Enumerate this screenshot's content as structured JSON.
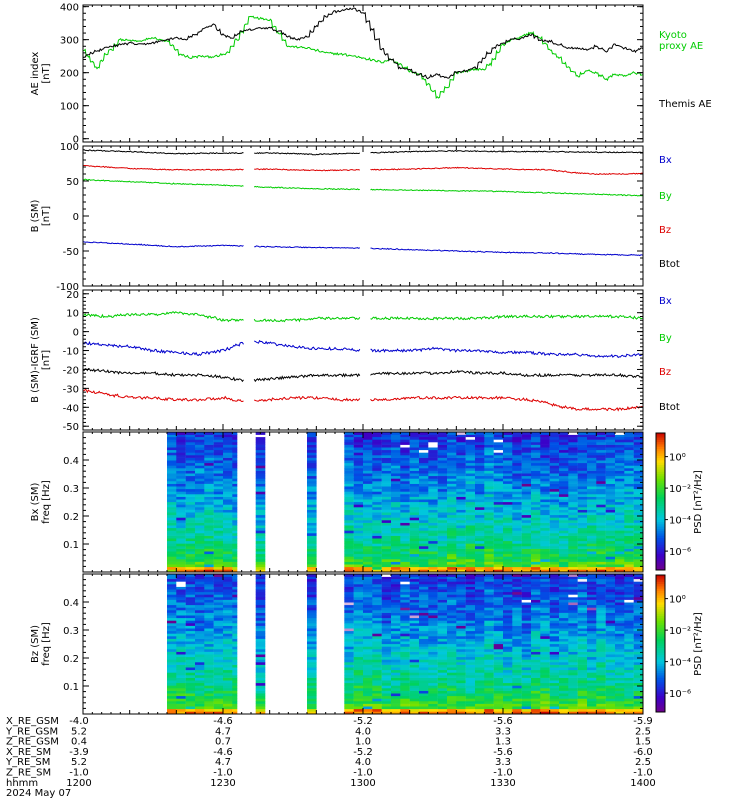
{
  "panels": [
    {
      "id": "ae",
      "ylabel": [
        "AE index",
        "[nT]"
      ],
      "ylim": [
        -10,
        405
      ],
      "yticks": [
        0,
        100,
        200,
        300,
        400
      ],
      "series": [
        {
          "name": "Kyoto proxy AE",
          "color": "#00cc00",
          "x": [
            1200,
            1201,
            1203,
            1205,
            1208,
            1212,
            1215,
            1218,
            1221,
            1223,
            1225,
            1227,
            1229,
            1231,
            1233,
            1236,
            1240,
            1244,
            1248,
            1252,
            1256,
            1300,
            1302,
            1304,
            1306,
            1308,
            1310,
            1312,
            1314,
            1316,
            1318,
            1320,
            1322,
            1324,
            1326,
            1328,
            1330,
            1332,
            1334,
            1336,
            1338,
            1340,
            1342,
            1344,
            1346,
            1348,
            1350,
            1352,
            1354,
            1356,
            1358,
            1400
          ],
          "y": [
            270,
            250,
            215,
            255,
            300,
            295,
            305,
            295,
            255,
            245,
            250,
            248,
            250,
            260,
            300,
            370,
            360,
            280,
            275,
            260,
            255,
            245,
            238,
            232,
            240,
            225,
            205,
            195,
            165,
            125,
            155,
            200,
            205,
            210,
            210,
            240,
            285,
            300,
            310,
            320,
            305,
            270,
            245,
            215,
            190,
            205,
            200,
            180,
            195,
            190,
            200,
            195
          ]
        },
        {
          "name": "Themis AE",
          "color": "#000000",
          "x": [
            1200,
            1202,
            1205,
            1208,
            1210,
            1212,
            1215,
            1218,
            1220,
            1222,
            1224,
            1226,
            1228,
            1230,
            1232,
            1234,
            1236,
            1238,
            1240,
            1242,
            1244,
            1246,
            1248,
            1250,
            1252,
            1254,
            1256,
            1258,
            1300,
            1302,
            1304,
            1306,
            1308,
            1310,
            1312,
            1314,
            1316,
            1318,
            1320,
            1322,
            1324,
            1326,
            1328,
            1330,
            1332,
            1334,
            1336,
            1338,
            1340,
            1342,
            1344,
            1346,
            1348,
            1350,
            1352,
            1354,
            1356,
            1358,
            1400
          ],
          "y": [
            245,
            260,
            275,
            285,
            290,
            285,
            290,
            300,
            305,
            300,
            315,
            335,
            345,
            315,
            305,
            325,
            330,
            335,
            335,
            325,
            310,
            300,
            310,
            340,
            370,
            385,
            390,
            395,
            380,
            330,
            270,
            240,
            215,
            210,
            195,
            185,
            195,
            185,
            200,
            205,
            215,
            245,
            275,
            290,
            300,
            305,
            315,
            300,
            295,
            285,
            275,
            275,
            270,
            280,
            265,
            285,
            275,
            265,
            275
          ]
        }
      ],
      "legend": [
        {
          "text": "Kyoto",
          "color": "#00cc00"
        },
        {
          "text": "proxy AE",
          "color": "#00cc00"
        },
        {
          "text": "Themis AE",
          "color": "#000000"
        }
      ]
    },
    {
      "id": "bsm",
      "ylabel": [
        "B (SM)",
        "[nT]"
      ],
      "ylim": [
        -100,
        100
      ],
      "yticks": [
        -100,
        -50,
        0,
        50,
        100
      ],
      "gaps": [
        [
          1235,
          1236
        ],
        [
          1300,
          1301
        ]
      ],
      "series": [
        {
          "name": "Bx",
          "color": "#0000cc",
          "x": [
            1200,
            1210,
            1220,
            1230,
            1240,
            1250,
            1300,
            1310,
            1320,
            1330,
            1340,
            1350,
            1400
          ],
          "y": [
            -37,
            -40,
            -44,
            -42,
            -44,
            -45,
            -46,
            -48,
            -50,
            -52,
            -53,
            -55,
            -56
          ]
        },
        {
          "name": "By",
          "color": "#00cc00",
          "x": [
            1200,
            1210,
            1220,
            1230,
            1240,
            1250,
            1300,
            1310,
            1320,
            1330,
            1340,
            1350,
            1400
          ],
          "y": [
            52,
            49,
            46,
            44,
            41,
            39,
            38,
            37,
            36,
            35,
            33,
            31,
            29
          ]
        },
        {
          "name": "Bz",
          "color": "#dd0000",
          "x": [
            1200,
            1210,
            1220,
            1230,
            1240,
            1250,
            1300,
            1310,
            1320,
            1330,
            1340,
            1345,
            1350,
            1355,
            1400
          ],
          "y": [
            72,
            68,
            66,
            66,
            67,
            65,
            66,
            67,
            69,
            67,
            66,
            62,
            60,
            60,
            61
          ]
        },
        {
          "name": "Btot",
          "color": "#000000",
          "x": [
            1200,
            1210,
            1220,
            1230,
            1240,
            1250,
            1300,
            1310,
            1320,
            1330,
            1340,
            1350,
            1400
          ],
          "y": [
            94,
            92,
            89,
            90,
            90,
            88,
            90,
            92,
            93,
            92,
            92,
            91,
            91
          ]
        }
      ],
      "legend": [
        {
          "text": "Bx",
          "color": "#0000cc"
        },
        {
          "text": "By",
          "color": "#00cc00"
        },
        {
          "text": "Bz",
          "color": "#dd0000"
        },
        {
          "text": "Btot",
          "color": "#000000"
        }
      ]
    },
    {
      "id": "bigrf",
      "ylabel": [
        "B (SM)-IGRF (SM)",
        "[nT]"
      ],
      "ylim": [
        -52,
        22
      ],
      "yticks": [
        -50,
        -40,
        -30,
        -20,
        -10,
        0,
        10,
        20
      ],
      "gaps": [
        [
          1235,
          1236
        ],
        [
          1300,
          1301
        ]
      ],
      "series": [
        {
          "name": "Bx",
          "color": "#0000cc",
          "x": [
            1200,
            1205,
            1210,
            1215,
            1220,
            1225,
            1230,
            1233,
            1236,
            1240,
            1245,
            1250,
            1255,
            1300,
            1305,
            1310,
            1315,
            1320,
            1325,
            1330,
            1335,
            1340,
            1345,
            1350,
            1355,
            1400
          ],
          "y": [
            -6,
            -7,
            -8,
            -10,
            -11,
            -12,
            -10,
            -7,
            -5,
            -6,
            -8,
            -9,
            -9,
            -10,
            -10,
            -10,
            -9,
            -10,
            -10,
            -11,
            -11,
            -12,
            -12,
            -13,
            -13,
            -12
          ]
        },
        {
          "name": "By",
          "color": "#00cc00",
          "x": [
            1200,
            1205,
            1210,
            1215,
            1220,
            1225,
            1230,
            1235,
            1240,
            1245,
            1250,
            1255,
            1300,
            1305,
            1310,
            1315,
            1320,
            1325,
            1330,
            1335,
            1340,
            1345,
            1350,
            1355,
            1400
          ],
          "y": [
            9,
            8,
            9,
            9,
            10,
            9,
            6,
            6,
            6,
            6,
            7,
            7,
            7,
            7,
            7,
            7,
            7,
            7,
            8,
            8,
            8,
            8,
            8,
            8,
            7
          ]
        },
        {
          "name": "Bz",
          "color": "#dd0000",
          "x": [
            1200,
            1205,
            1210,
            1215,
            1220,
            1225,
            1230,
            1235,
            1240,
            1245,
            1250,
            1255,
            1300,
            1305,
            1310,
            1315,
            1320,
            1325,
            1330,
            1335,
            1340,
            1343,
            1346,
            1350,
            1355,
            1400
          ],
          "y": [
            -31,
            -33,
            -35,
            -35,
            -36,
            -36,
            -35,
            -37,
            -36,
            -35,
            -35,
            -36,
            -36,
            -36,
            -35,
            -35,
            -35,
            -35,
            -35,
            -36,
            -38,
            -40,
            -41,
            -41,
            -41,
            -40
          ]
        },
        {
          "name": "Btot",
          "color": "#000000",
          "x": [
            1200,
            1205,
            1210,
            1215,
            1220,
            1225,
            1230,
            1235,
            1240,
            1245,
            1250,
            1255,
            1300,
            1305,
            1310,
            1315,
            1320,
            1325,
            1330,
            1335,
            1340,
            1345,
            1350,
            1355,
            1400
          ],
          "y": [
            -20,
            -21,
            -22,
            -22,
            -23,
            -23,
            -24,
            -26,
            -25,
            -24,
            -23,
            -23,
            -23,
            -22,
            -22,
            -22,
            -21,
            -22,
            -22,
            -23,
            -23,
            -23,
            -23,
            -23,
            -24
          ]
        }
      ],
      "legend": [
        {
          "text": "Bx",
          "color": "#0000cc"
        },
        {
          "text": "By",
          "color": "#00cc00"
        },
        {
          "text": "Bz",
          "color": "#dd0000"
        },
        {
          "text": "Btot",
          "color": "#000000"
        }
      ]
    },
    {
      "id": "bxspec",
      "ylabel": [
        "Bx (SM)",
        "freq  [Hz]"
      ],
      "ylim": [
        0,
        0.5
      ],
      "yticks": [
        0.1,
        0.2,
        0.3,
        0.4
      ],
      "ytick_labels": [
        "0.1",
        "0.2",
        "0.3",
        "0.4"
      ],
      "colorbar_label": "PSD [nT²/Hz]",
      "colorbar_ticks": [
        "10⁰",
        "10⁻²",
        "10⁻⁴",
        "10⁻⁶"
      ],
      "colorbar_tick_exponents": [
        0,
        -2,
        -4,
        -6
      ],
      "data_intervals": [
        [
          1218,
          1233
        ],
        [
          1237,
          1239
        ],
        [
          1248,
          1250
        ],
        [
          1256,
          1400
        ]
      ]
    },
    {
      "id": "bzspec",
      "ylabel": [
        "Bz (SM)",
        "freq  [Hz]"
      ],
      "ylim": [
        0,
        0.5
      ],
      "yticks": [
        0.1,
        0.2,
        0.3,
        0.4
      ],
      "ytick_labels": [
        "0.1",
        "0.2",
        "0.3",
        "0.4"
      ],
      "colorbar_label": "PSD [nT²/Hz]",
      "colorbar_ticks": [
        "10⁰",
        "10⁻²",
        "10⁻⁴",
        "10⁻⁶"
      ],
      "colorbar_tick_exponents": [
        0,
        -2,
        -4,
        -6
      ],
      "data_intervals": [
        [
          1218,
          1233
        ],
        [
          1237,
          1239
        ],
        [
          1248,
          1250
        ],
        [
          1256,
          1400
        ]
      ]
    }
  ],
  "xaxis": {
    "xlim": [
      1200,
      1400
    ],
    "major_ticks": [
      1200,
      1230,
      1300,
      1330,
      1400
    ]
  },
  "ephemeris": {
    "rows": [
      {
        "label": "X_RE_GSM",
        "values": [
          "-4.0",
          "-4.6",
          "-5.2",
          "-5.6",
          "-5.9"
        ]
      },
      {
        "label": "Y_RE_GSM",
        "values": [
          "5.2",
          "4.7",
          "4.0",
          "3.3",
          "2.5"
        ]
      },
      {
        "label": "Z_RE_GSM",
        "values": [
          "0.4",
          "0.7",
          "1.0",
          "1.3",
          "1.5"
        ]
      },
      {
        "label": "X_RE_SM",
        "values": [
          "-3.9",
          "-4.6",
          "-5.2",
          "-5.6",
          "-6.0"
        ]
      },
      {
        "label": "Y_RE_SM",
        "values": [
          "5.2",
          "4.7",
          "4.0",
          "3.3",
          "2.5"
        ]
      },
      {
        "label": "Z_RE_SM",
        "values": [
          "-1.0",
          "-1.0",
          "-1.0",
          "-1.0",
          "-1.0"
        ]
      },
      {
        "label": "hhmm",
        "values": [
          "1200",
          "1230",
          "1300",
          "1330",
          "1400"
        ]
      }
    ],
    "date": "2024 May 07"
  },
  "chart_data": [
    {
      "type": "line",
      "title": "",
      "xlabel": "hhmm",
      "ylabel": "AE index [nT]",
      "ylim": [
        -10,
        405
      ],
      "xlim": [
        1200,
        1400
      ],
      "series_names": [
        "Kyoto proxy AE",
        "Themis AE"
      ]
    },
    {
      "type": "line",
      "title": "",
      "xlabel": "hhmm",
      "ylabel": "B (SM) [nT]",
      "ylim": [
        -100,
        100
      ],
      "xlim": [
        1200,
        1400
      ],
      "series_names": [
        "Bx",
        "By",
        "Bz",
        "Btot"
      ]
    },
    {
      "type": "line",
      "title": "",
      "xlabel": "hhmm",
      "ylabel": "B (SM)-IGRF (SM) [nT]",
      "ylim": [
        -52,
        22
      ],
      "xlim": [
        1200,
        1400
      ],
      "series_names": [
        "Bx",
        "By",
        "Bz",
        "Btot"
      ]
    },
    {
      "type": "heatmap",
      "title": "",
      "xlabel": "hhmm",
      "ylabel": "Bx (SM) freq [Hz]",
      "ylim": [
        0,
        0.5
      ],
      "colorbar": "PSD [nT²/Hz]"
    },
    {
      "type": "heatmap",
      "title": "",
      "xlabel": "hhmm",
      "ylabel": "Bz (SM) freq [Hz]",
      "ylim": [
        0,
        0.5
      ],
      "colorbar": "PSD [nT²/Hz]"
    }
  ]
}
